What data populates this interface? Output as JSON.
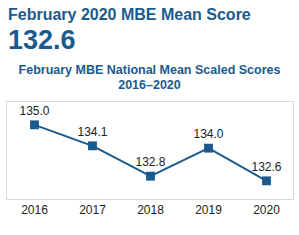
{
  "header": {
    "title": "February 2020 MBE Mean Score",
    "value": 132.6
  },
  "chart_data": {
    "type": "line",
    "title": "February MBE National Mean Scaled Scores",
    "subtitle": "2016–2020",
    "categories": [
      "2016",
      "2017",
      "2018",
      "2019",
      "2020"
    ],
    "values": [
      135.0,
      134.1,
      132.8,
      134.0,
      132.6
    ],
    "value_labels": [
      "135.0",
      "134.1",
      "132.8",
      "134.0",
      "132.6"
    ],
    "color": "#1b5a8c",
    "marker": "square",
    "line_style": "solid",
    "ylim": [
      131.8,
      136
    ],
    "yticks": [],
    "data_labels": true,
    "tick_labels": "x",
    "grid": false
  }
}
